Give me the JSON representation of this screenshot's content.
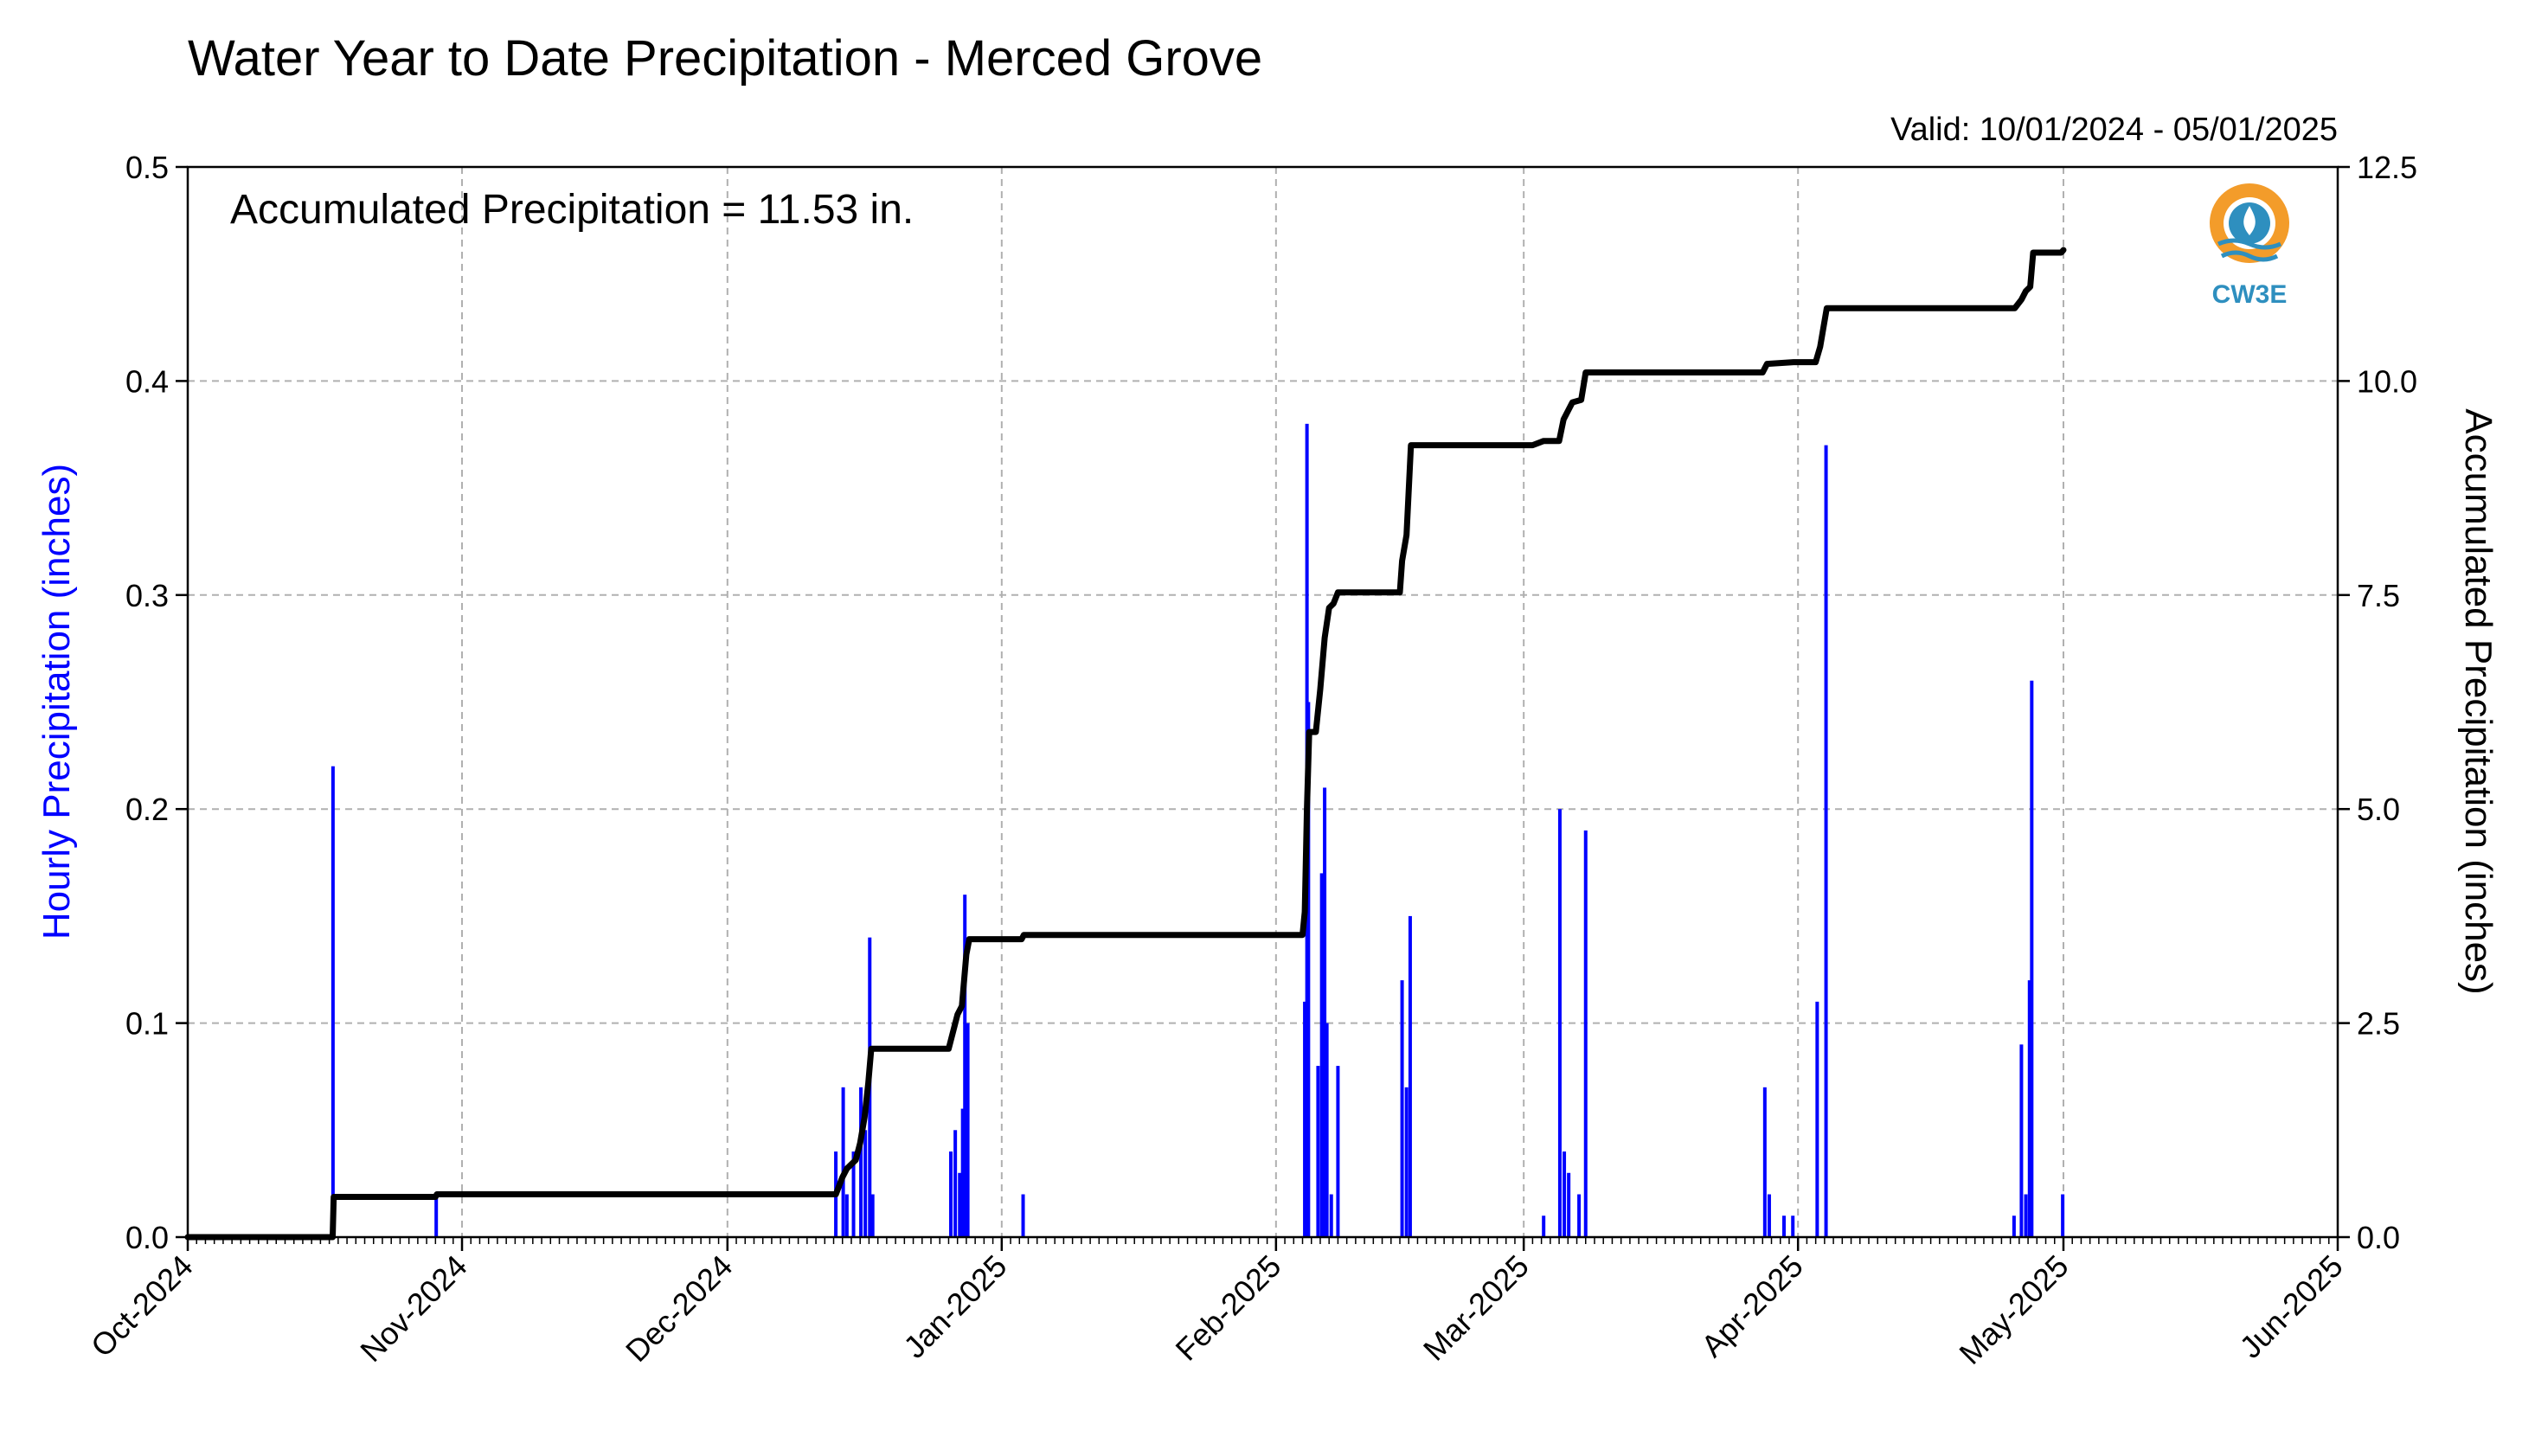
{
  "chart_data": {
    "type": "bar",
    "title": "Water Year to Date Precipitation - Merced Grove",
    "subtitle": "Valid: 10/01/2024 - 05/01/2025",
    "annotation": "Accumulated Precipitation = 11.53 in.",
    "ylabel": "Hourly Precipitation (inches)",
    "y2label": "Accumulated Precipitation (inches)",
    "xlim": [
      "2024-10-01",
      "2025-06-01"
    ],
    "ylim": [
      0,
      0.5
    ],
    "y2lim": [
      0,
      12.5
    ],
    "x_ticks": [
      "Oct-2024",
      "Nov-2024",
      "Dec-2024",
      "Jan-2025",
      "Feb-2025",
      "Mar-2025",
      "Apr-2025",
      "May-2025",
      "Jun-2025"
    ],
    "y_ticks": [
      "0.0",
      "0.1",
      "0.2",
      "0.3",
      "0.4",
      "0.5"
    ],
    "y2_ticks": [
      "0.0",
      "2.5",
      "5.0",
      "7.5",
      "10.0",
      "12.5"
    ],
    "grid": true,
    "logo": "CW3E",
    "colors": {
      "hourly": "#0000ff",
      "accumulated": "#000000",
      "grid": "#b0b0b0"
    },
    "series": [
      {
        "type": "bar",
        "axis": "left",
        "values": [
          [
            "2024-10-17T10:00",
            0.22
          ],
          [
            "2024-10-17T12:00",
            0.02
          ],
          [
            "2024-10-29T02:00",
            0.02
          ],
          [
            "2024-12-13T06:00",
            0.04
          ],
          [
            "2024-12-14T02:00",
            0.07
          ],
          [
            "2024-12-14T12:00",
            0.02
          ],
          [
            "2024-12-15T06:00",
            0.04
          ],
          [
            "2024-12-16T02:00",
            0.07
          ],
          [
            "2024-12-16T14:00",
            0.05
          ],
          [
            "2024-12-17T02:00",
            0.14
          ],
          [
            "2024-12-17T10:00",
            0.02
          ],
          [
            "2024-12-26T06:00",
            0.04
          ],
          [
            "2024-12-26T18:00",
            0.05
          ],
          [
            "2024-12-27T06:00",
            0.03
          ],
          [
            "2024-12-27T14:00",
            0.06
          ],
          [
            "2024-12-27T20:00",
            0.16
          ],
          [
            "2024-12-28T04:00",
            0.1
          ],
          [
            "2025-01-03T10:00",
            0.02
          ],
          [
            "2025-02-04T06:00",
            0.11
          ],
          [
            "2025-02-04T12:00",
            0.38
          ],
          [
            "2025-02-04T16:00",
            0.25
          ],
          [
            "2025-02-05T18:00",
            0.08
          ],
          [
            "2025-02-06T04:00",
            0.17
          ],
          [
            "2025-02-06T12:00",
            0.21
          ],
          [
            "2025-02-06T18:00",
            0.1
          ],
          [
            "2025-02-07T06:00",
            0.02
          ],
          [
            "2025-02-08T00:00",
            0.08
          ],
          [
            "2025-02-15T06:00",
            0.12
          ],
          [
            "2025-02-15T18:00",
            0.07
          ],
          [
            "2025-02-16T04:00",
            0.15
          ],
          [
            "2025-03-03T06:00",
            0.01
          ],
          [
            "2025-03-05T02:00",
            0.2
          ],
          [
            "2025-03-05T14:00",
            0.04
          ],
          [
            "2025-03-06T02:00",
            0.03
          ],
          [
            "2025-03-07T06:00",
            0.02
          ],
          [
            "2025-03-08T00:00",
            0.19
          ],
          [
            "2025-03-28T06:00",
            0.07
          ],
          [
            "2025-03-28T18:00",
            0.02
          ],
          [
            "2025-03-30T10:00",
            0.01
          ],
          [
            "2025-03-31T10:00",
            0.01
          ],
          [
            "2025-04-03T04:00",
            0.11
          ],
          [
            "2025-04-04T04:00",
            0.37
          ],
          [
            "2025-04-25T10:00",
            0.01
          ],
          [
            "2025-04-26T06:00",
            0.09
          ],
          [
            "2025-04-26T18:00",
            0.02
          ],
          [
            "2025-04-27T04:00",
            0.12
          ],
          [
            "2025-04-27T10:00",
            0.26
          ],
          [
            "2025-04-30T22:00",
            0.02
          ]
        ]
      },
      {
        "type": "line",
        "axis": "right",
        "values": [
          [
            "2024-10-01T00:00",
            0.0
          ],
          [
            "2024-10-17T09:00",
            0.0
          ],
          [
            "2024-10-17T12:00",
            0.47
          ],
          [
            "2024-10-29T00:00",
            0.47
          ],
          [
            "2024-10-29T04:00",
            0.5
          ],
          [
            "2024-12-13T06:00",
            0.5
          ],
          [
            "2024-12-14T00:00",
            0.7
          ],
          [
            "2024-12-14T12:00",
            0.8
          ],
          [
            "2024-12-15T12:00",
            0.9
          ],
          [
            "2024-12-16T00:00",
            1.1
          ],
          [
            "2024-12-16T12:00",
            1.4
          ],
          [
            "2024-12-16T22:00",
            1.8
          ],
          [
            "2024-12-17T06:00",
            2.2
          ],
          [
            "2024-12-26T00:00",
            2.2
          ],
          [
            "2024-12-26T12:00",
            2.4
          ],
          [
            "2024-12-27T00:00",
            2.6
          ],
          [
            "2024-12-27T12:00",
            2.7
          ],
          [
            "2024-12-28T00:00",
            3.3
          ],
          [
            "2024-12-28T08:00",
            3.48
          ],
          [
            "2025-01-03T06:00",
            3.48
          ],
          [
            "2025-01-03T12:00",
            3.53
          ],
          [
            "2025-02-04T00:00",
            3.53
          ],
          [
            "2025-02-04T06:00",
            3.8
          ],
          [
            "2025-02-04T12:00",
            5.0
          ],
          [
            "2025-02-04T18:00",
            5.9
          ],
          [
            "2025-02-05T12:00",
            5.9
          ],
          [
            "2025-02-06T00:00",
            6.4
          ],
          [
            "2025-02-06T12:00",
            7.0
          ],
          [
            "2025-02-07T00:00",
            7.35
          ],
          [
            "2025-02-07T12:00",
            7.4
          ],
          [
            "2025-02-08T00:00",
            7.53
          ],
          [
            "2025-02-15T00:00",
            7.53
          ],
          [
            "2025-02-15T06:00",
            7.9
          ],
          [
            "2025-02-15T18:00",
            8.2
          ],
          [
            "2025-02-16T06:00",
            9.25
          ],
          [
            "2025-03-02T00:00",
            9.25
          ],
          [
            "2025-03-03T06:00",
            9.3
          ],
          [
            "2025-03-05T00:00",
            9.3
          ],
          [
            "2025-03-05T12:00",
            9.55
          ],
          [
            "2025-03-06T00:00",
            9.65
          ],
          [
            "2025-03-06T12:00",
            9.75
          ],
          [
            "2025-03-07T12:00",
            9.78
          ],
          [
            "2025-03-08T00:00",
            10.1
          ],
          [
            "2025-03-28T00:00",
            10.1
          ],
          [
            "2025-03-28T12:00",
            10.2
          ],
          [
            "2025-03-31T12:00",
            10.22
          ],
          [
            "2025-04-03T00:00",
            10.22
          ],
          [
            "2025-04-03T12:00",
            10.4
          ],
          [
            "2025-04-04T06:00",
            10.85
          ],
          [
            "2025-04-25T12:00",
            10.85
          ],
          [
            "2025-04-26T06:00",
            10.95
          ],
          [
            "2025-04-26T18:00",
            11.05
          ],
          [
            "2025-04-27T06:00",
            11.1
          ],
          [
            "2025-04-27T14:00",
            11.5
          ],
          [
            "2025-04-30T18:00",
            11.5
          ],
          [
            "2025-05-01T00:00",
            11.53
          ]
        ]
      }
    ]
  }
}
